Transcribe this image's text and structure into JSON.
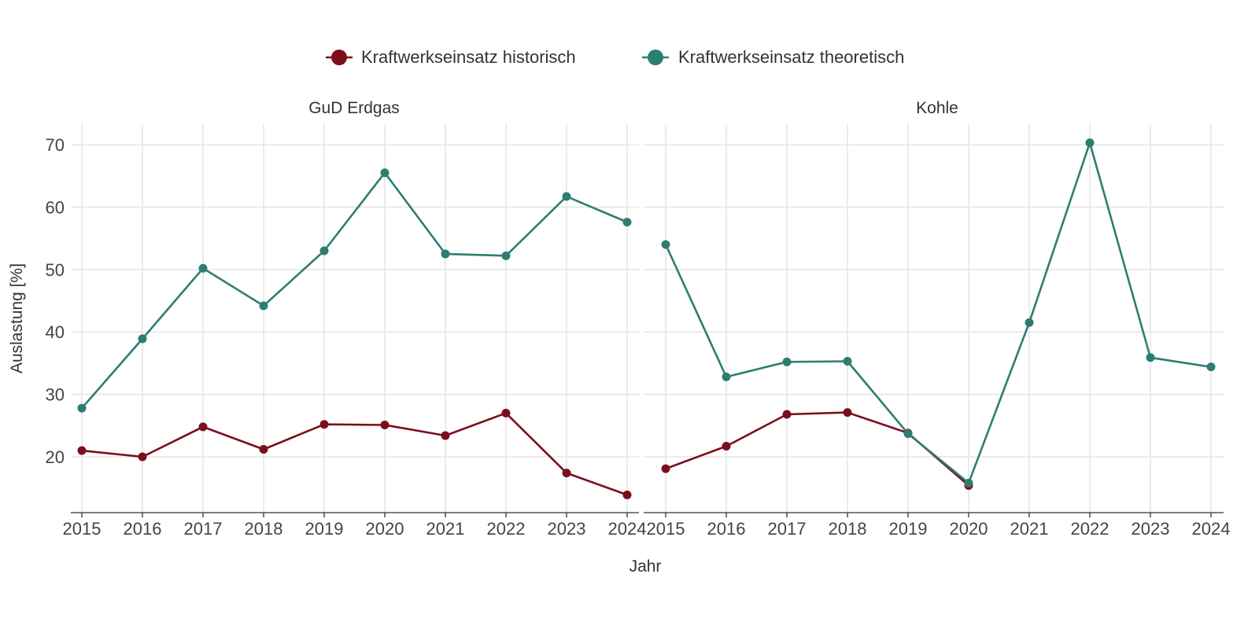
{
  "chart_data": {
    "type": "line",
    "xlabel": "Jahr",
    "ylabel": "Auslastung [%]",
    "ylim": [
      11,
      73
    ],
    "yticks": [
      20,
      30,
      40,
      50,
      60,
      70
    ],
    "x": [
      "2015",
      "2016",
      "2017",
      "2018",
      "2019",
      "2020",
      "2021",
      "2022",
      "2023",
      "2024"
    ],
    "legend_position": "top",
    "grid": true,
    "series_meta": [
      {
        "name": "Kraftwerkseinsatz historisch",
        "color": "#7a0f1c"
      },
      {
        "name": "Kraftwerkseinsatz theoretisch",
        "color": "#2e7d72"
      }
    ],
    "facets": [
      {
        "title": "GuD Erdgas",
        "series": [
          {
            "name": "Kraftwerkseinsatz historisch",
            "values": [
              21.0,
              20.0,
              24.8,
              21.2,
              25.2,
              25.1,
              23.4,
              27.0,
              17.4,
              13.9
            ]
          },
          {
            "name": "Kraftwerkseinsatz theoretisch",
            "values": [
              27.8,
              38.9,
              50.2,
              44.2,
              53.0,
              65.5,
              52.5,
              52.2,
              61.7,
              57.6
            ]
          }
        ]
      },
      {
        "title": "Kohle",
        "series": [
          {
            "name": "Kraftwerkseinsatz historisch",
            "values": [
              18.1,
              21.7,
              26.8,
              27.1,
              23.8,
              15.4,
              null,
              null,
              null,
              null
            ]
          },
          {
            "name": "Kraftwerkseinsatz theoretisch",
            "values": [
              54.0,
              32.8,
              35.2,
              35.3,
              23.7,
              15.8,
              41.5,
              70.3,
              35.9,
              34.4
            ]
          }
        ]
      }
    ]
  }
}
